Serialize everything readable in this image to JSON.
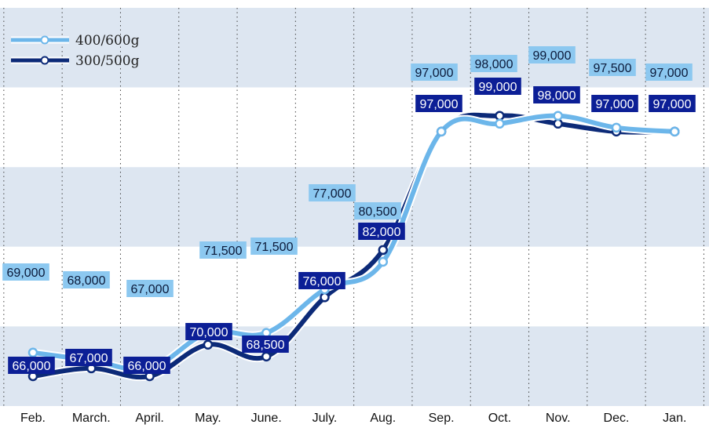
{
  "chart_data": {
    "type": "line",
    "categories": [
      "Feb.",
      "March.",
      "April.",
      "May.",
      "June.",
      "July.",
      "Aug.",
      "Sep.",
      "Oct.",
      "Nov.",
      "Dec.",
      "Jan."
    ],
    "series": [
      {
        "name": "400/600g",
        "values": [
          69000,
          68000,
          67000,
          71500,
          71500,
          77000,
          80500,
          97000,
          98000,
          99000,
          97500,
          97000
        ],
        "labels": [
          "69,000",
          "68,000",
          "67,000",
          "71,500",
          "71,500",
          "77,000",
          "80,500",
          "97,000",
          "98,000",
          "99,000",
          "97,500",
          "97,000"
        ],
        "color": "#6cb6ea"
      },
      {
        "name": "300/500g",
        "values": [
          66000,
          67000,
          66000,
          70000,
          68500,
          76000,
          82000,
          97000,
          99000,
          98000,
          97000,
          97000
        ],
        "labels": [
          "66,000",
          "67,000",
          "66,000",
          "70,000",
          "68,500",
          "76,000",
          "82,000",
          "97,000",
          "99,000",
          "98,000",
          "97,000",
          "97,000"
        ],
        "color": "#0c2a78"
      }
    ],
    "legend_position": "top-left",
    "grid": true,
    "background_bands": [
      "#dde6f1",
      "#ffffff"
    ]
  }
}
